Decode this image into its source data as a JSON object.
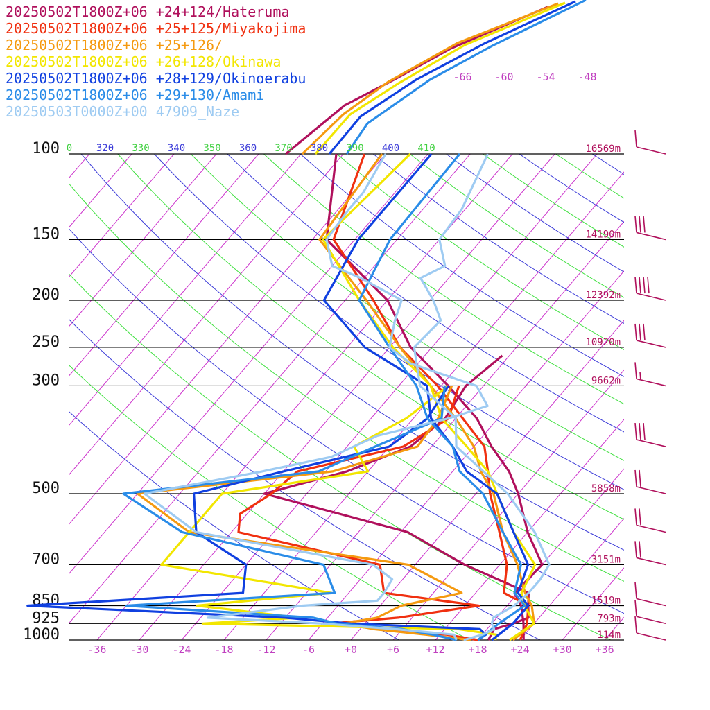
{
  "chart_data": {
    "type": "line",
    "title": "",
    "legend_placement": "top-left",
    "legend": [
      {
        "text": "20250502T1800Z+06 +24+124/Hateruma",
        "color": "#b0105c"
      },
      {
        "text": "20250502T1800Z+06 +25+125/Miyakojima",
        "color": "#f03010"
      },
      {
        "text": "20250502T1800Z+06 +25+126/",
        "color": "#f59a10"
      },
      {
        "text": "20250502T1800Z+06 +26+128/Okinawa",
        "color": "#f2e600"
      },
      {
        "text": "20250502T1800Z+06 +28+129/Okinoerabu",
        "color": "#1040e0"
      },
      {
        "text": "20250502T1800Z+06 +29+130/Amami",
        "color": "#2a8ce8"
      },
      {
        "text": "20250503T0000Z+00 47909_Naze",
        "color": "#9ecbf2"
      }
    ],
    "x_axis": {
      "label": "",
      "range": [
        -40,
        39
      ],
      "ticks": [
        -36,
        -30,
        -24,
        -18,
        -12,
        -6,
        0,
        6,
        12,
        18,
        24,
        30,
        36
      ],
      "tick_labels": [
        "-36",
        "-30",
        "-24",
        "-18",
        "-12",
        "-6",
        "+0",
        "+6",
        "+12",
        "+18",
        "+24",
        "+30",
        "+36"
      ],
      "color": "#c040c0"
    },
    "y_axis": {
      "label": "",
      "scale": "log",
      "range": [
        1000,
        100
      ],
      "levels": [
        {
          "p": 100,
          "label": "100",
          "height": "16569m"
        },
        {
          "p": 150,
          "label": "150",
          "height": "14190m"
        },
        {
          "p": 200,
          "label": "200",
          "height": "12392m"
        },
        {
          "p": 250,
          "label": "250",
          "height": "10920m"
        },
        {
          "p": 300,
          "label": "300",
          "height": "9662m"
        },
        {
          "p": 500,
          "label": "500",
          "height": "5858m"
        },
        {
          "p": 700,
          "label": "700",
          "height": "3151m"
        },
        {
          "p": 850,
          "label": "850",
          "height": "1519m"
        },
        {
          "p": 925,
          "label": "925",
          "height": "793m"
        },
        {
          "p": 1000,
          "label": "1000",
          "height": "114m"
        }
      ]
    },
    "isotherm_labels": [
      "-66",
      "-60",
      "-54",
      "-48"
    ],
    "theta_labels": [
      {
        "text": "0",
        "kind": "green"
      },
      {
        "text": "320",
        "kind": "blue"
      },
      {
        "text": "330",
        "kind": "green"
      },
      {
        "text": "340",
        "kind": "blue"
      },
      {
        "text": "350",
        "kind": "green"
      },
      {
        "text": "360",
        "kind": "blue"
      },
      {
        "text": "370",
        "kind": "green"
      },
      {
        "text": "380",
        "kind": "blue"
      },
      {
        "text": "390",
        "kind": "green"
      },
      {
        "text": "400",
        "kind": "blue"
      },
      {
        "text": "410",
        "kind": "green"
      }
    ],
    "series": [
      {
        "name": "Hateruma",
        "color": "#b0105c",
        "points": [
          [
            1000,
            24.5
          ],
          [
            925,
            22.5
          ],
          [
            850,
            20.0
          ],
          [
            800,
            17.5
          ],
          [
            700,
            18.0
          ],
          [
            600,
            12.0
          ],
          [
            500,
            6.0
          ],
          [
            450,
            2.0
          ],
          [
            400,
            -3.5
          ],
          [
            350,
            -9.0
          ],
          [
            300,
            -17.0
          ],
          [
            250,
            -27.0
          ],
          [
            200,
            -36.0
          ],
          [
            150,
            -52.0
          ],
          [
            100,
            -61.0
          ]
        ]
      },
      {
        "name": "Hateruma",
        "color": "#b0105c",
        "points": [
          [
            1000,
            19.5
          ],
          [
            950,
            19.0
          ],
          [
            925,
            21.0
          ],
          [
            900,
            22.5
          ],
          [
            850,
            21.0
          ],
          [
            800,
            19.5
          ],
          [
            700,
            7.0
          ],
          [
            600,
            -5.0
          ],
          [
            500,
            -30.0
          ],
          [
            450,
            -21.0
          ],
          [
            400,
            -15.0
          ],
          [
            350,
            -13.5
          ],
          [
            300,
            -14.5
          ],
          [
            260,
            -13.0
          ]
        ]
      },
      {
        "name": "Miyakojima",
        "color": "#f03010",
        "points": [
          [
            1000,
            24.0
          ],
          [
            925,
            23.0
          ],
          [
            850,
            21.0
          ],
          [
            800,
            16.0
          ],
          [
            700,
            13.0
          ],
          [
            600,
            8.0
          ],
          [
            500,
            2.0
          ],
          [
            450,
            -1.0
          ],
          [
            400,
            -4.5
          ],
          [
            350,
            -11.0
          ],
          [
            300,
            -18.5
          ],
          [
            250,
            -28.5
          ],
          [
            200,
            -38.0
          ],
          [
            150,
            -51.0
          ],
          [
            100,
            -57.0
          ]
        ]
      },
      {
        "name": "Miyakojima",
        "color": "#f03010",
        "points": [
          [
            1000,
            18.0
          ],
          [
            975,
            13.0
          ],
          [
            950,
            3.0
          ],
          [
            925,
            -5.0
          ],
          [
            900,
            4.0
          ],
          [
            850,
            14.0
          ],
          [
            800,
            -1.0
          ],
          [
            700,
            -5.0
          ],
          [
            600,
            -29.0
          ],
          [
            550,
            -31.0
          ],
          [
            500,
            -29.0
          ],
          [
            450,
            -28.0
          ],
          [
            400,
            -16.0
          ],
          [
            350,
            -13.0
          ],
          [
            300,
            -15.5
          ]
        ]
      },
      {
        "name": "",
        "color": "#f59a10",
        "points": [
          [
            1000,
            23.0
          ],
          [
            925,
            24.0
          ],
          [
            850,
            21.5
          ],
          [
            800,
            19.0
          ],
          [
            700,
            14.5
          ],
          [
            600,
            8.5
          ],
          [
            500,
            2.5
          ],
          [
            450,
            -2.0
          ],
          [
            400,
            -6.0
          ],
          [
            350,
            -12.0
          ],
          [
            300,
            -19.5
          ],
          [
            250,
            -28.5
          ],
          [
            200,
            -39.0
          ],
          [
            150,
            -53.0
          ],
          [
            100,
            -54.5
          ]
        ]
      },
      {
        "name": "",
        "color": "#f59a10",
        "points": [
          [
            1000,
            17.0
          ],
          [
            975,
            10.0
          ],
          [
            950,
            2.0
          ],
          [
            925,
            -3.0
          ],
          [
            900,
            1.0
          ],
          [
            850,
            3.0
          ],
          [
            800,
            10.0
          ],
          [
            700,
            -1.0
          ],
          [
            600,
            -36.0
          ],
          [
            500,
            -48.0
          ],
          [
            450,
            -23.0
          ],
          [
            400,
            -14.0
          ],
          [
            350,
            -14.5
          ],
          [
            300,
            -16.5
          ]
        ]
      },
      {
        "name": "Okinawa",
        "color": "#f2e600",
        "points": [
          [
            1000,
            22.5
          ],
          [
            925,
            24.0
          ],
          [
            850,
            20.5
          ],
          [
            800,
            18.5
          ],
          [
            700,
            17.0
          ],
          [
            600,
            10.0
          ],
          [
            500,
            3.0
          ],
          [
            450,
            -1.0
          ],
          [
            400,
            -7.0
          ],
          [
            350,
            -14.0
          ],
          [
            300,
            -19.5
          ],
          [
            250,
            -29.5
          ],
          [
            200,
            -40.0
          ],
          [
            150,
            -52.5
          ],
          [
            100,
            -50.5
          ]
        ]
      },
      {
        "name": "Okinawa",
        "color": "#f2e600",
        "points": [
          [
            1000,
            20.5
          ],
          [
            975,
            20.0
          ],
          [
            950,
            14.0
          ],
          [
            925,
            -23.0
          ],
          [
            900,
            -10.0
          ],
          [
            850,
            -26.0
          ],
          [
            800,
            -8.5
          ],
          [
            700,
            -36.0
          ],
          [
            600,
            -36.0
          ],
          [
            500,
            -36.0
          ],
          [
            450,
            -18.0
          ],
          [
            400,
            -23.0
          ],
          [
            350,
            -19.0
          ],
          [
            300,
            -17.0
          ]
        ]
      },
      {
        "name": "Okinoerabu",
        "color": "#1040e0",
        "points": [
          [
            1000,
            20.0
          ],
          [
            925,
            21.0
          ],
          [
            850,
            21.0
          ],
          [
            800,
            18.0
          ],
          [
            700,
            16.0
          ],
          [
            600,
            10.0
          ],
          [
            500,
            3.0
          ],
          [
            450,
            -4.0
          ],
          [
            400,
            -9.0
          ],
          [
            350,
            -15.5
          ],
          [
            300,
            -20.0
          ],
          [
            250,
            -33.5
          ],
          [
            200,
            -45.0
          ],
          [
            150,
            -47.5
          ],
          [
            100,
            -47.5
          ]
        ]
      },
      {
        "name": "Okinoerabu",
        "color": "#1040e0",
        "points": [
          [
            1000,
            18.0
          ],
          [
            975,
            18.5
          ],
          [
            950,
            17.0
          ],
          [
            925,
            -2.0
          ],
          [
            900,
            -12.0
          ],
          [
            850,
            -50.0
          ],
          [
            800,
            -21.0
          ],
          [
            700,
            -24.0
          ],
          [
            600,
            -35.0
          ],
          [
            500,
            -40.0
          ],
          [
            450,
            -30.0
          ],
          [
            400,
            -18.0
          ],
          [
            350,
            -16.0
          ],
          [
            300,
            -17.0
          ]
        ]
      },
      {
        "name": "Amami",
        "color": "#2a8ce8",
        "points": [
          [
            1000,
            18.0
          ],
          [
            925,
            19.0
          ],
          [
            850,
            20.5
          ],
          [
            800,
            17.5
          ],
          [
            700,
            15.0
          ],
          [
            600,
            8.5
          ],
          [
            500,
            1.0
          ],
          [
            450,
            -5.0
          ],
          [
            400,
            -9.0
          ],
          [
            350,
            -16.0
          ],
          [
            300,
            -21.5
          ],
          [
            250,
            -30.0
          ],
          [
            200,
            -40.0
          ],
          [
            150,
            -43.0
          ],
          [
            100,
            -43.5
          ]
        ]
      },
      {
        "name": "Amami",
        "color": "#2a8ce8",
        "points": [
          [
            1000,
            15.0
          ],
          [
            975,
            11.0
          ],
          [
            950,
            6.0
          ],
          [
            925,
            -4.0
          ],
          [
            900,
            -8.0
          ],
          [
            850,
            -36.0
          ],
          [
            800,
            -8.0
          ],
          [
            700,
            -13.0
          ],
          [
            600,
            -37.0
          ],
          [
            500,
            -50.0
          ],
          [
            450,
            -25.0
          ],
          [
            400,
            -20.0
          ],
          [
            350,
            -14.0
          ],
          [
            300,
            -17.5
          ]
        ]
      },
      {
        "name": "Naze",
        "color": "#9ecbf2",
        "points": [
          [
            1000,
            16.0
          ],
          [
            975,
            18.0
          ],
          [
            950,
            19.0
          ],
          [
            925,
            18.0
          ],
          [
            900,
            17.5
          ],
          [
            850,
            19.0
          ],
          [
            800,
            19.5
          ],
          [
            750,
            19.5
          ],
          [
            700,
            19.0
          ],
          [
            600,
            13.0
          ],
          [
            500,
            4.5
          ],
          [
            400,
            -8.5
          ],
          [
            350,
            -12.0
          ],
          [
            300,
            -21.0
          ],
          [
            250,
            -26.5
          ],
          [
            220,
            -26.0
          ],
          [
            200,
            -29.5
          ],
          [
            180,
            -34.0
          ],
          [
            170,
            -32.0
          ],
          [
            150,
            -36.0
          ],
          [
            130,
            -36.5
          ],
          [
            100,
            -39.5
          ]
        ]
      },
      {
        "name": "Naze",
        "color": "#9ecbf2",
        "points": [
          [
            1000,
            15.0
          ],
          [
            975,
            14.0
          ],
          [
            950,
            5.0
          ],
          [
            925,
            -6.0
          ],
          [
            900,
            -23.0
          ],
          [
            850,
            -11.0
          ],
          [
            830,
            -1.0
          ],
          [
            800,
            -1.0
          ],
          [
            750,
            -1.5
          ],
          [
            700,
            -6.0
          ],
          [
            600,
            -35.0
          ],
          [
            500,
            -47.0
          ],
          [
            450,
            -33.0
          ],
          [
            420,
            -25.0
          ],
          [
            380,
            -21.0
          ],
          [
            350,
            -13.0
          ],
          [
            330,
            -9.0
          ],
          [
            300,
            -13.0
          ],
          [
            270,
            -25.0
          ],
          [
            250,
            -30.0
          ],
          [
            220,
            -32.5
          ],
          [
            200,
            -34.0
          ],
          [
            180,
            -42.5
          ],
          [
            170,
            -48.0
          ],
          [
            150,
            -52.0
          ],
          [
            130,
            -52.5
          ],
          [
            120,
            -52.5
          ],
          [
            100,
            -54.0
          ]
        ]
      }
    ],
    "wind_barbs": [
      {
        "p": 100,
        "feathers": "pennant-none",
        "count_full": 1,
        "half": false
      },
      {
        "p": 150,
        "count_full": 3,
        "half": false
      },
      {
        "p": 200,
        "count_full": 4,
        "half": false
      },
      {
        "p": 250,
        "count_full": 3,
        "half": false
      },
      {
        "p": 300,
        "count_full": 1,
        "half": true
      },
      {
        "p": 400,
        "count_full": 3,
        "half": false
      },
      {
        "p": 500,
        "count_full": 2,
        "half": false
      },
      {
        "p": 600,
        "count_full": 2,
        "half": false
      },
      {
        "p": 700,
        "count_full": 2,
        "half": false
      },
      {
        "p": 850,
        "count_full": 1,
        "half": false
      },
      {
        "p": 925,
        "count_full": 1,
        "half": false
      },
      {
        "p": 1000,
        "count_full": 1,
        "half": false
      }
    ]
  }
}
